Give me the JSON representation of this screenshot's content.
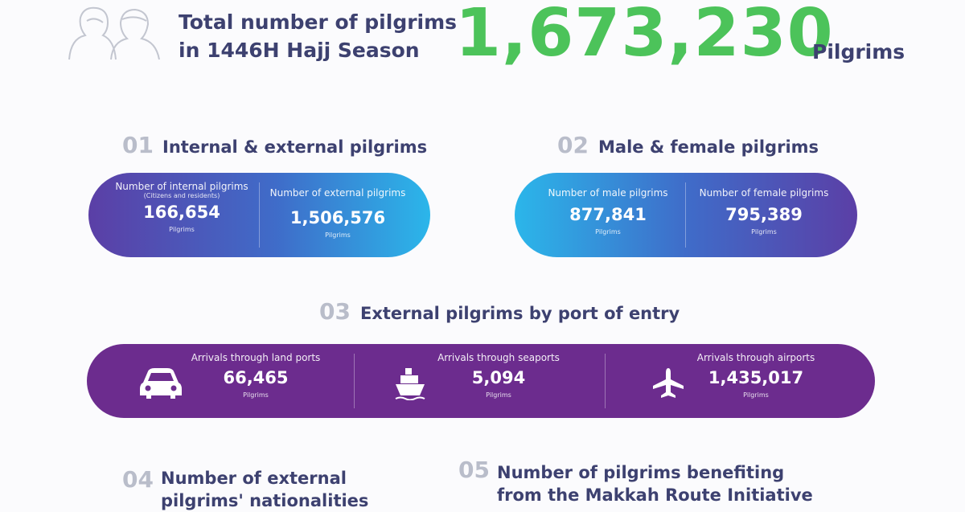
{
  "header": {
    "title_lines": [
      "Total number of pilgrims",
      "in 1446H Hajj Season"
    ],
    "total": "1,673,230",
    "unit": "Pilgrims"
  },
  "sections": [
    {
      "number": "01",
      "title": "Internal & external pilgrims",
      "items": [
        {
          "label": "Number of internal pilgrims",
          "note": "(Citizens and residents)",
          "value": "166,654",
          "unit": "Pilgrims"
        },
        {
          "label": "Number of external pilgrims",
          "value": "1,506,576",
          "unit": "Pilgrims"
        }
      ]
    },
    {
      "number": "02",
      "title": "Male & female pilgrims",
      "items": [
        {
          "label": "Number of male pilgrims",
          "value": "877,841",
          "unit": "Pilgrims"
        },
        {
          "label": "Number of female pilgrims",
          "value": "795,389",
          "unit": "Pilgrims"
        }
      ]
    },
    {
      "number": "03",
      "title": "External pilgrims by port of entry",
      "items": [
        {
          "label": "Arrivals through land ports",
          "value": "66,465",
          "unit": "Pilgrims"
        },
        {
          "label": "Arrivals through seaports",
          "value": "5,094",
          "unit": "Pilgrims"
        },
        {
          "label": "Arrivals through airports",
          "value": "1,435,017",
          "unit": "Pilgrims"
        }
      ]
    },
    {
      "number": "04",
      "title_lines": [
        "Number of external",
        "pilgrims' nationalities"
      ]
    },
    {
      "number": "05",
      "title_lines": [
        "Number of pilgrims benefiting",
        "from the Makkah Route Initiative"
      ]
    }
  ]
}
